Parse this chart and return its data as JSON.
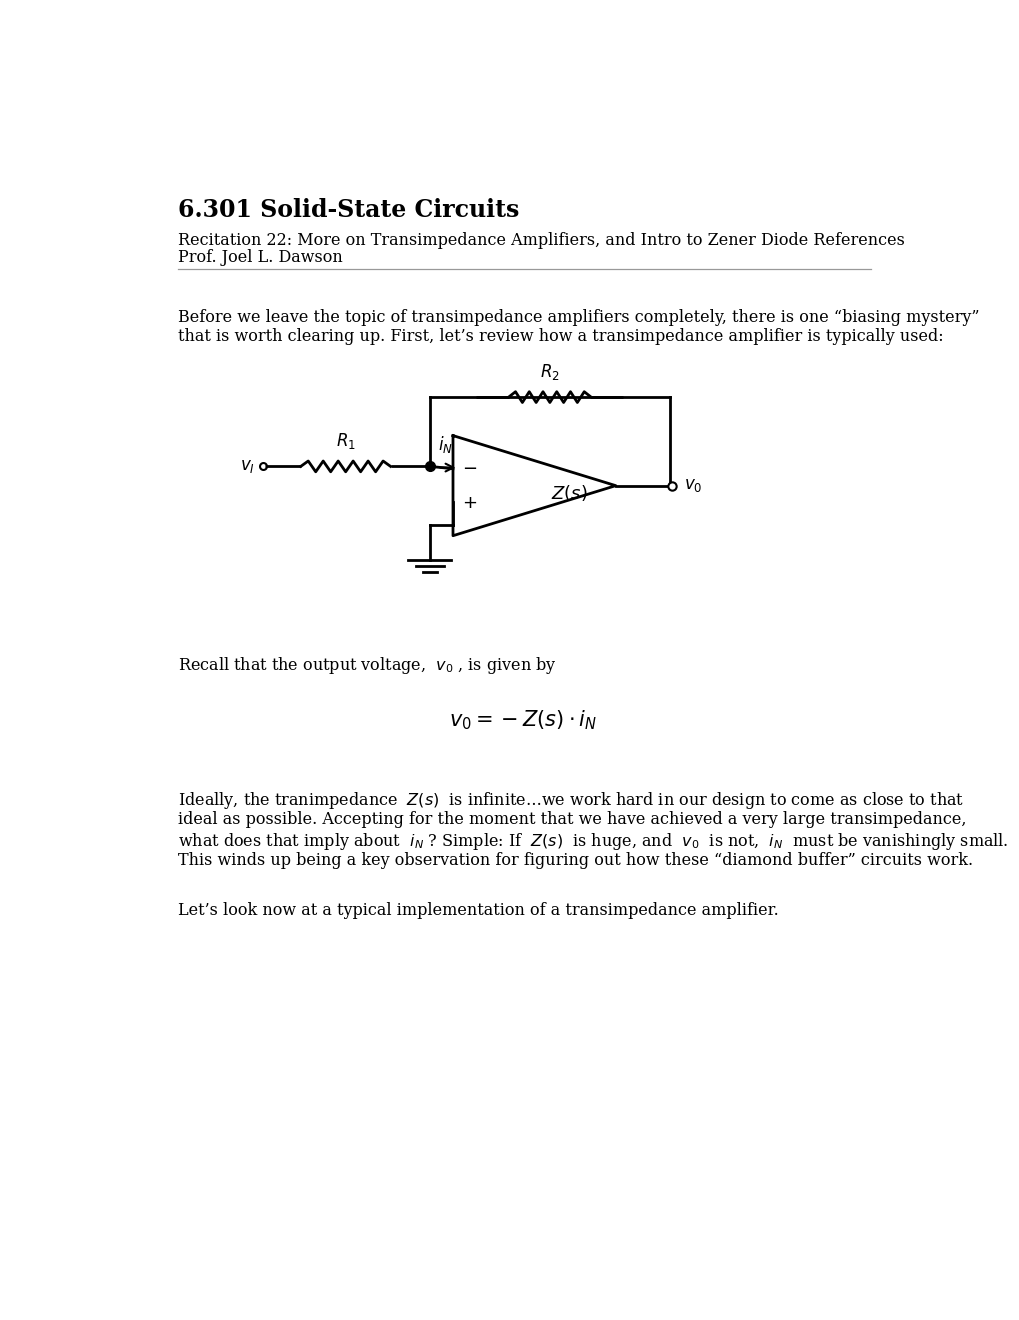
{
  "title": "6.301 Solid-State Circuits",
  "subtitle": "Recitation 22: More on Transimpedance Amplifiers, and Intro to Zener Diode References",
  "author": "Prof. Joel L. Dawson",
  "para1_l1": "Before we leave the topic of transimpedance amplifiers completely, there is one “biasing mystery”",
  "para1_l2": "that is worth clearing up. First, let’s review how a transimpedance amplifier is typically used:",
  "recall_line": "Recall that the output voltage,  $v_0$ , is given by",
  "para2_l1": "Ideally, the tranimpedance  $Z(s)$  is infinite…we work hard in our design to come as close to that",
  "para2_l2": "ideal as possible. Accepting for the moment that we have achieved a very large transimpedance,",
  "para2_l3": "what does that imply about  $i_N$ ? Simple: If  $Z(s)$  is huge, and  $v_0$  is not,  $i_N$  must be vanishingly small.",
  "para2_l4": "This winds up being a key observation for figuring out how these “diamond buffer” circuits work.",
  "para3": "Let’s look now at a typical implementation of a transimpedance amplifier.",
  "bg_color": "#ffffff",
  "text_color": "#000000"
}
